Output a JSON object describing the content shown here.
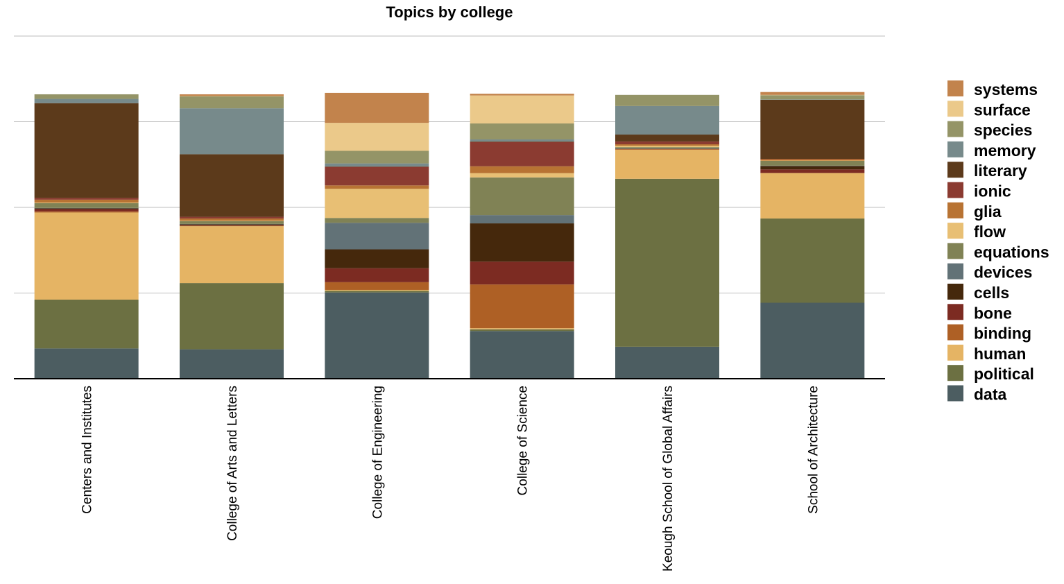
{
  "chart_data": {
    "type": "bar",
    "stacked": true,
    "title": "Topics by college",
    "xlabel": "",
    "ylabel": "",
    "ylim": [
      0,
      120
    ],
    "grid": true,
    "legend_position": "right",
    "categories": [
      "Centers and Institutes",
      "College of Arts and Letters",
      "College of Engineering",
      "College of Science",
      "Keough School of Global Affairs",
      "School of Architecture"
    ],
    "series": [
      {
        "name": "data",
        "color": "#4C5D61",
        "values": [
          10.6,
          10.3,
          30.2,
          16.7,
          11.2,
          26.6
        ]
      },
      {
        "name": "political",
        "color": "#6C7042",
        "values": [
          17.1,
          23.2,
          0.6,
          0.6,
          58.8,
          29.5
        ]
      },
      {
        "name": "human",
        "color": "#E5B464",
        "values": [
          30.5,
          19.9,
          0.3,
          0.4,
          10.2,
          15.9
        ]
      },
      {
        "name": "binding",
        "color": "#AE6025",
        "values": [
          0.4,
          0.2,
          2.7,
          15.3,
          0.2,
          0.1
        ]
      },
      {
        "name": "bone",
        "color": "#7C2B22",
        "values": [
          0.8,
          0.2,
          4.9,
          8.0,
          0.1,
          1.2
        ]
      },
      {
        "name": "cells",
        "color": "#45280C",
        "values": [
          0.3,
          0.3,
          6.6,
          13.4,
          0.1,
          1.2
        ]
      },
      {
        "name": "devices",
        "color": "#627277",
        "values": [
          0.1,
          0.1,
          9.3,
          2.9,
          0.1,
          0.1
        ]
      },
      {
        "name": "equations",
        "color": "#808255",
        "values": [
          1.7,
          1.0,
          1.7,
          13.2,
          0.4,
          1.7
        ]
      },
      {
        "name": "flow",
        "color": "#E8BF74",
        "values": [
          0.2,
          0.1,
          10.2,
          1.5,
          0.5,
          0.1
        ]
      },
      {
        "name": "glia",
        "color": "#B87333",
        "values": [
          1.0,
          0.8,
          1.2,
          2.4,
          0.5,
          0.5
        ]
      },
      {
        "name": "ionic",
        "color": "#8B3B31",
        "values": [
          0.6,
          0.6,
          6.5,
          8.5,
          1.0,
          0.1
        ]
      },
      {
        "name": "literary",
        "color": "#5C3A1B",
        "values": [
          33.2,
          21.9,
          0.1,
          0.2,
          2.4,
          20.7
        ]
      },
      {
        "name": "memory",
        "color": "#778A8B",
        "values": [
          1.5,
          16.1,
          1.1,
          0.7,
          10.0,
          0.1
        ]
      },
      {
        "name": "species",
        "color": "#949467",
        "values": [
          1.6,
          4.2,
          4.4,
          5.6,
          3.9,
          1.5
        ]
      },
      {
        "name": "surface",
        "color": "#EBC98A",
        "values": [
          0.0,
          0.1,
          9.8,
          9.8,
          0.0,
          0.1
        ]
      },
      {
        "name": "systems",
        "color": "#C2834C",
        "values": [
          0.0,
          0.6,
          10.5,
          0.6,
          0.0,
          1.0
        ]
      }
    ]
  }
}
